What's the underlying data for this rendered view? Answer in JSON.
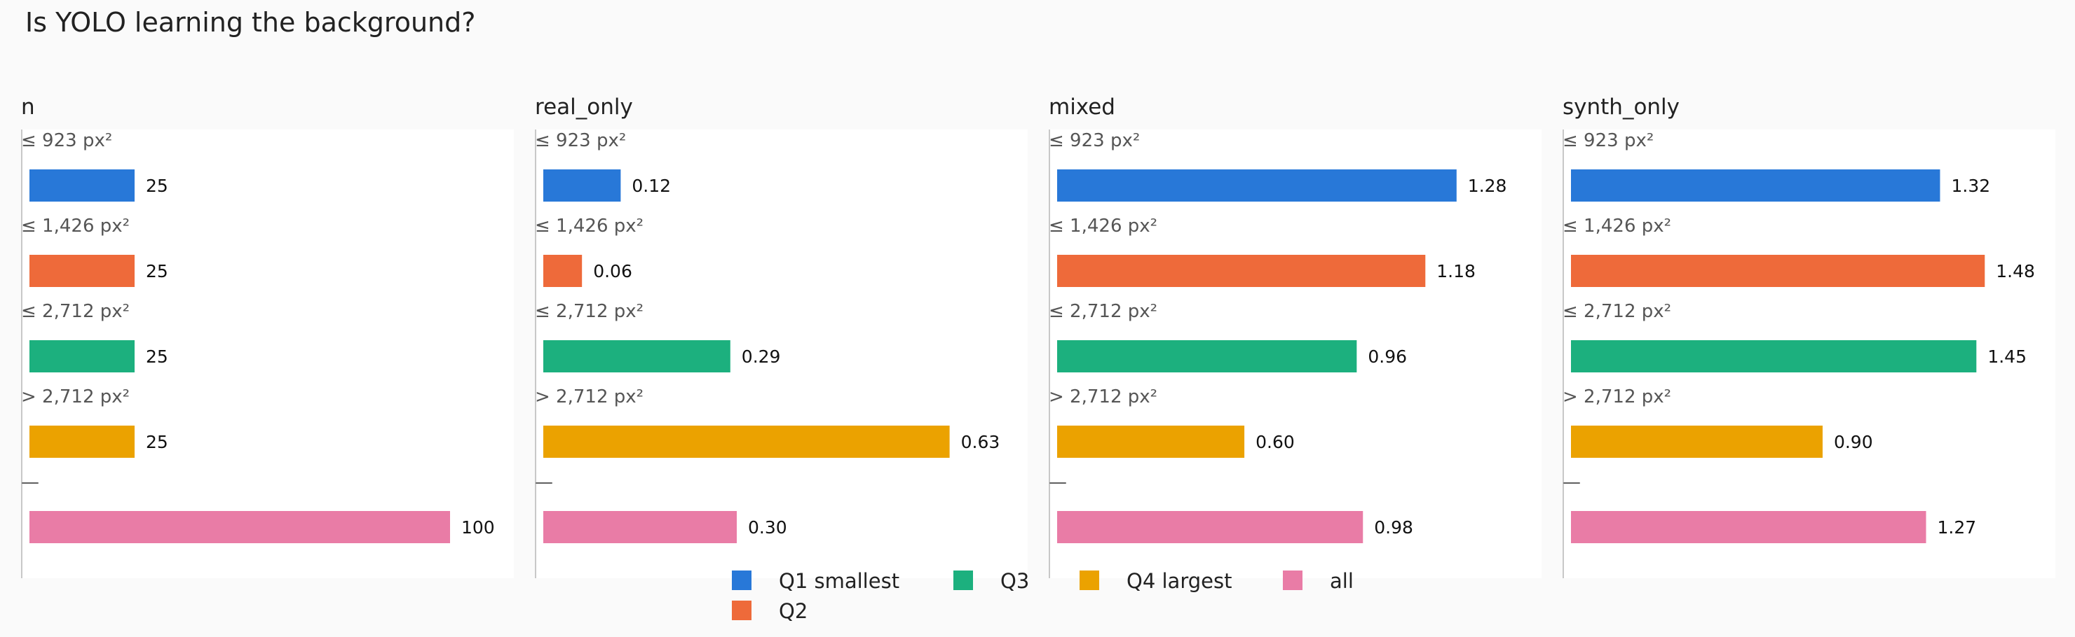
{
  "title": "Is YOLO learning the background?",
  "chart_data": {
    "type": "bar",
    "orientation": "horizontal",
    "categories": [
      "≤ 923 px²",
      "≤ 1,426 px²",
      "≤ 2,712 px²",
      "> 2,712 px²",
      "—"
    ],
    "series_names": [
      "Q1 smallest",
      "Q2",
      "Q3",
      "Q4 largest",
      "all"
    ],
    "colors": [
      "#2878d8",
      "#ee6a3a",
      "#1cb07e",
      "#eba200",
      "#e97ca6"
    ],
    "panels": [
      {
        "title": "n",
        "values": [
          25,
          25,
          25,
          25,
          100
        ],
        "labels": [
          "25",
          "25",
          "25",
          "25",
          "100"
        ],
        "xlim": [
          0,
          115
        ]
      },
      {
        "title": "real_only",
        "values": [
          0.12,
          0.06,
          0.29,
          0.63,
          0.3
        ],
        "labels": [
          "0.12",
          "0.06",
          "0.29",
          "0.63",
          "0.30"
        ],
        "xlim": [
          0,
          0.75
        ]
      },
      {
        "title": "mixed",
        "values": [
          1.28,
          1.18,
          0.96,
          0.6,
          0.98
        ],
        "labels": [
          "1.28",
          "1.18",
          "0.96",
          "0.60",
          "0.98"
        ],
        "xlim": [
          0,
          1.55
        ]
      },
      {
        "title": "synth_only",
        "values": [
          1.32,
          1.48,
          1.45,
          0.9,
          1.27
        ],
        "labels": [
          "1.32",
          "1.48",
          "1.45",
          "0.90",
          "1.27"
        ],
        "xlim": [
          0,
          1.73
        ]
      }
    ],
    "legend": {
      "placement": "bottom-center",
      "entries": [
        "Q1 smallest",
        "Q2",
        "Q3",
        "Q4 largest",
        "all"
      ]
    },
    "grid": false
  }
}
